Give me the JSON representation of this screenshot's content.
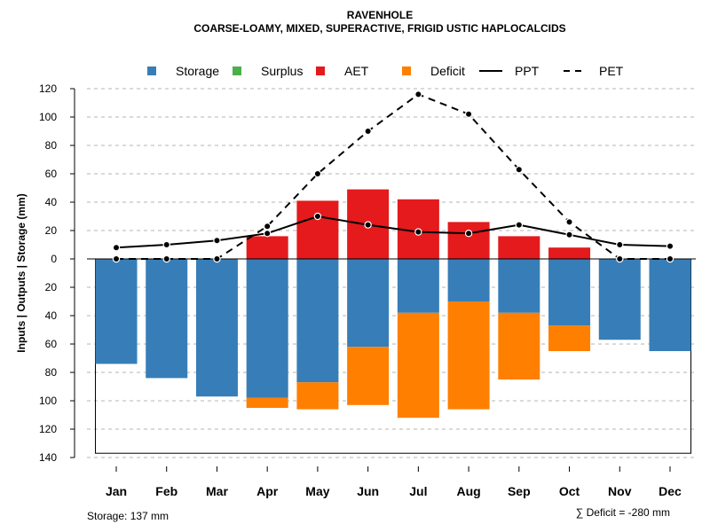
{
  "chart_data": {
    "type": "bar",
    "title": "RAVENHOLE",
    "subtitle": "COARSE-LOAMY, MIXED, SUPERACTIVE, FRIGID USTIC HAPLOCALCIDS",
    "ylabel": "Inputs | Outputs | Storage    (mm)",
    "xlabel": "",
    "ylim": [
      -140,
      120
    ],
    "y_ticks": [
      120,
      100,
      80,
      60,
      40,
      20,
      0,
      -20,
      -40,
      -60,
      -80,
      -100,
      -120,
      -140
    ],
    "y_tick_labels": [
      "120",
      "100",
      "80",
      "60",
      "40",
      "20",
      "0",
      "20",
      "40",
      "60",
      "80",
      "100",
      "120",
      "140"
    ],
    "grid": true,
    "legend_position": "top",
    "categories": [
      "Jan",
      "Feb",
      "Mar",
      "Apr",
      "May",
      "Jun",
      "Jul",
      "Aug",
      "Sep",
      "Oct",
      "Nov",
      "Dec"
    ],
    "legend": [
      {
        "label": "Storage",
        "kind": "box",
        "color": "#377EB8"
      },
      {
        "label": "Surplus",
        "kind": "box",
        "color": "#4DAF4A"
      },
      {
        "label": "AET",
        "kind": "box",
        "color": "#E41A1C"
      },
      {
        "label": "Deficit",
        "kind": "box",
        "color": "#FF7F00"
      },
      {
        "label": "PPT",
        "kind": "solid-line",
        "color": "#000000"
      },
      {
        "label": "PET",
        "kind": "dashed-line",
        "color": "#000000"
      }
    ],
    "series": [
      {
        "name": "Storage",
        "color": "#377EB8",
        "values": [
          -74,
          -84,
          -97,
          -98,
          -87,
          -62,
          -38,
          -30,
          -38,
          -47,
          -57,
          -65
        ]
      },
      {
        "name": "Surplus",
        "color": "#4DAF4A",
        "values": [
          0,
          0,
          0,
          0,
          0,
          0,
          0,
          0,
          0,
          0,
          0,
          0
        ]
      },
      {
        "name": "AET",
        "color": "#E41A1C",
        "values": [
          0,
          0,
          0,
          16,
          41,
          49,
          42,
          26,
          16,
          8,
          0,
          0
        ]
      },
      {
        "name": "Deficit",
        "color": "#FF7F00",
        "values": [
          0,
          0,
          0,
          -7,
          -19,
          -41,
          -74,
          -76,
          -47,
          -18,
          0,
          0
        ]
      },
      {
        "name": "PPT",
        "color": "#000000",
        "values": [
          8,
          10,
          13,
          18,
          30,
          24,
          19,
          18,
          24,
          17,
          10,
          9
        ]
      },
      {
        "name": "PET",
        "color": "#000000",
        "values": [
          0,
          0,
          0,
          23,
          60,
          90,
          116,
          102,
          63,
          26,
          0,
          0
        ]
      }
    ],
    "storage_capacity": 137,
    "annotations": {
      "storage": "Storage: 137 mm",
      "deficit": "∑ Deficit = -280 mm"
    }
  }
}
